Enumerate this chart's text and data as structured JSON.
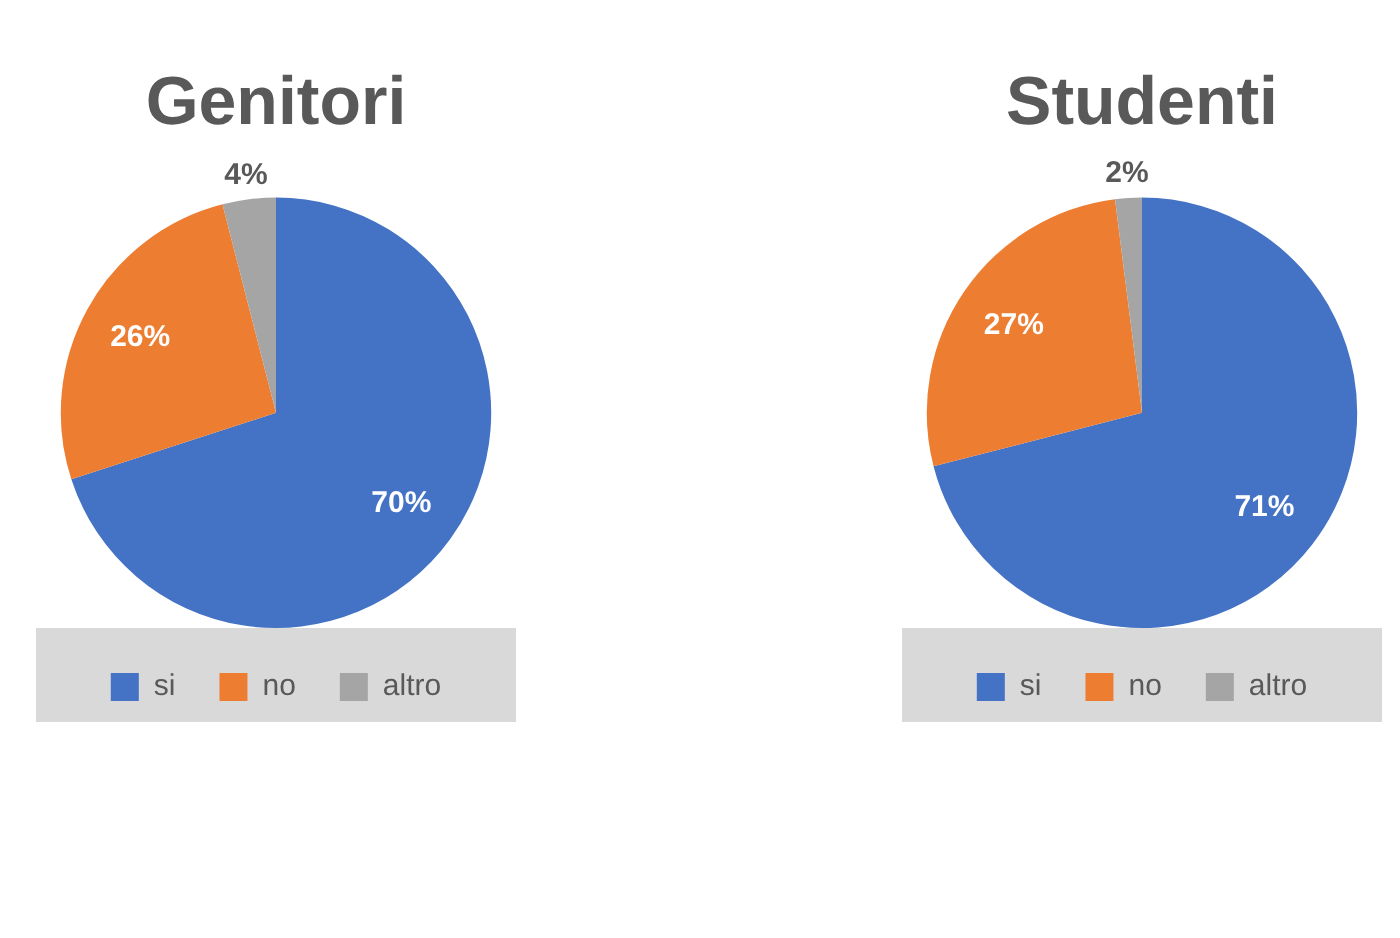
{
  "chart_data": [
    {
      "type": "pie",
      "title": "Genitori",
      "categories": [
        "si",
        "no",
        "altro"
      ],
      "values": [
        70,
        26,
        4
      ],
      "colors": [
        "#4472c4",
        "#ed7d31",
        "#a5a5a5"
      ],
      "value_labels": [
        "70%",
        "26%",
        "4%"
      ],
      "legend": "bottom"
    },
    {
      "type": "pie",
      "title": "Studenti",
      "categories": [
        "si",
        "no",
        "altro"
      ],
      "values": [
        71,
        27,
        2
      ],
      "colors": [
        "#4472c4",
        "#ed7d31",
        "#a5a5a5"
      ],
      "value_labels": [
        "71%",
        "27%",
        "2%"
      ],
      "legend": "bottom"
    }
  ]
}
